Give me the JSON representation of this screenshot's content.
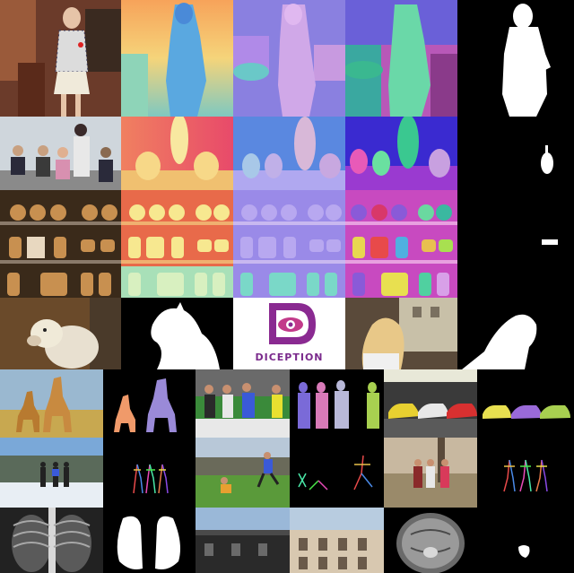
{
  "brand": {
    "name": "DICEPTION",
    "primary_color": "#8a2a91",
    "accent_color": "#c23a8a"
  },
  "rows": [
    {
      "name": "woman-cafe",
      "tasks": [
        "rgb",
        "depth",
        "normal",
        "segmentation",
        "mask"
      ]
    },
    {
      "name": "students-office",
      "tasks": [
        "rgb",
        "depth",
        "normal",
        "segmentation",
        "mask"
      ]
    },
    {
      "name": "bakery-shelves",
      "tasks": [
        "rgb",
        "depth",
        "normal",
        "segmentation",
        "mask"
      ]
    },
    {
      "name": "alpaca-logo-hair",
      "tasks": [
        "rgb",
        "mask",
        "logo",
        "rgb",
        "mask"
      ]
    },
    {
      "name": "giraffes-soccer-cars",
      "tasks": [
        "rgb",
        "segmentation",
        "rgb",
        "segmentation",
        "rgb",
        "segmentation"
      ]
    },
    {
      "name": "pose-estimation",
      "tasks": [
        "rgb",
        "pose",
        "rgb",
        "pose",
        "rgb",
        "pose"
      ]
    },
    {
      "name": "medical-buildings",
      "tasks": [
        "xray",
        "mask",
        "rgb",
        "rgb",
        "mri",
        "mask"
      ]
    }
  ]
}
